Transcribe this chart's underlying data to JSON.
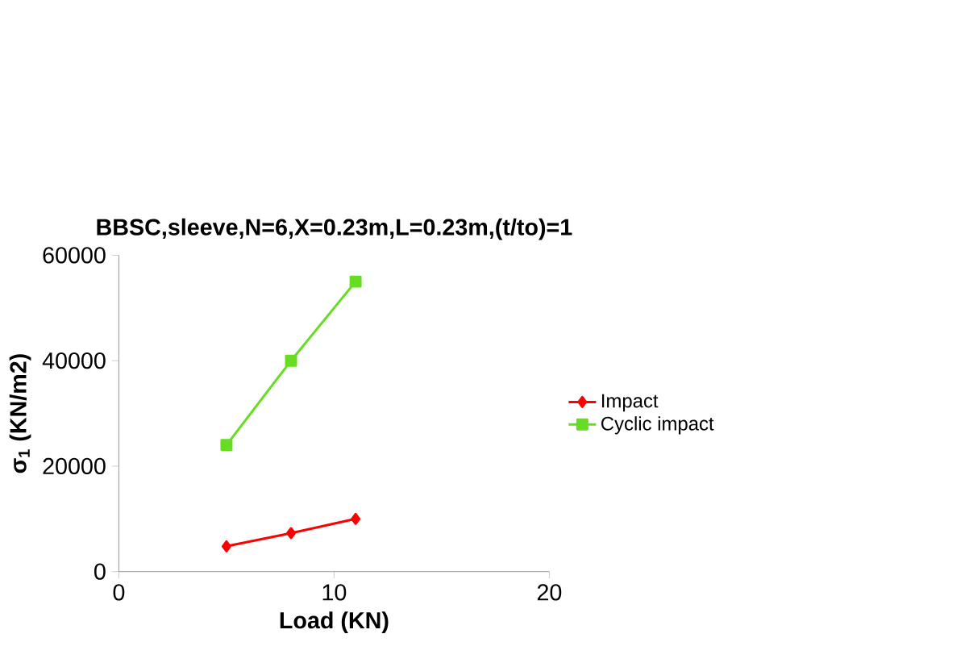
{
  "chart_data": {
    "type": "line",
    "title": "BBSC,sleeve,N=6,X=0.23m,L=0.23m,(t/to)=1",
    "xlabel": "Load (KN)",
    "ylabel": "σ$_{1}$ (KN/m2)",
    "x": [
      5,
      8,
      11
    ],
    "series": [
      {
        "name": "Impact",
        "color": "#ff0000",
        "marker": "diamond",
        "values": [
          4800,
          7300,
          10000
        ]
      },
      {
        "name": "Cyclic impact",
        "color": "#66dd22",
        "marker": "square",
        "values": [
          24000,
          40000,
          55000
        ]
      }
    ],
    "xlim": [
      0,
      20
    ],
    "ylim": [
      0,
      60000
    ],
    "xticks": [
      0,
      10,
      20
    ],
    "yticks": [
      0,
      20000,
      40000,
      60000
    ],
    "legend": "right"
  }
}
